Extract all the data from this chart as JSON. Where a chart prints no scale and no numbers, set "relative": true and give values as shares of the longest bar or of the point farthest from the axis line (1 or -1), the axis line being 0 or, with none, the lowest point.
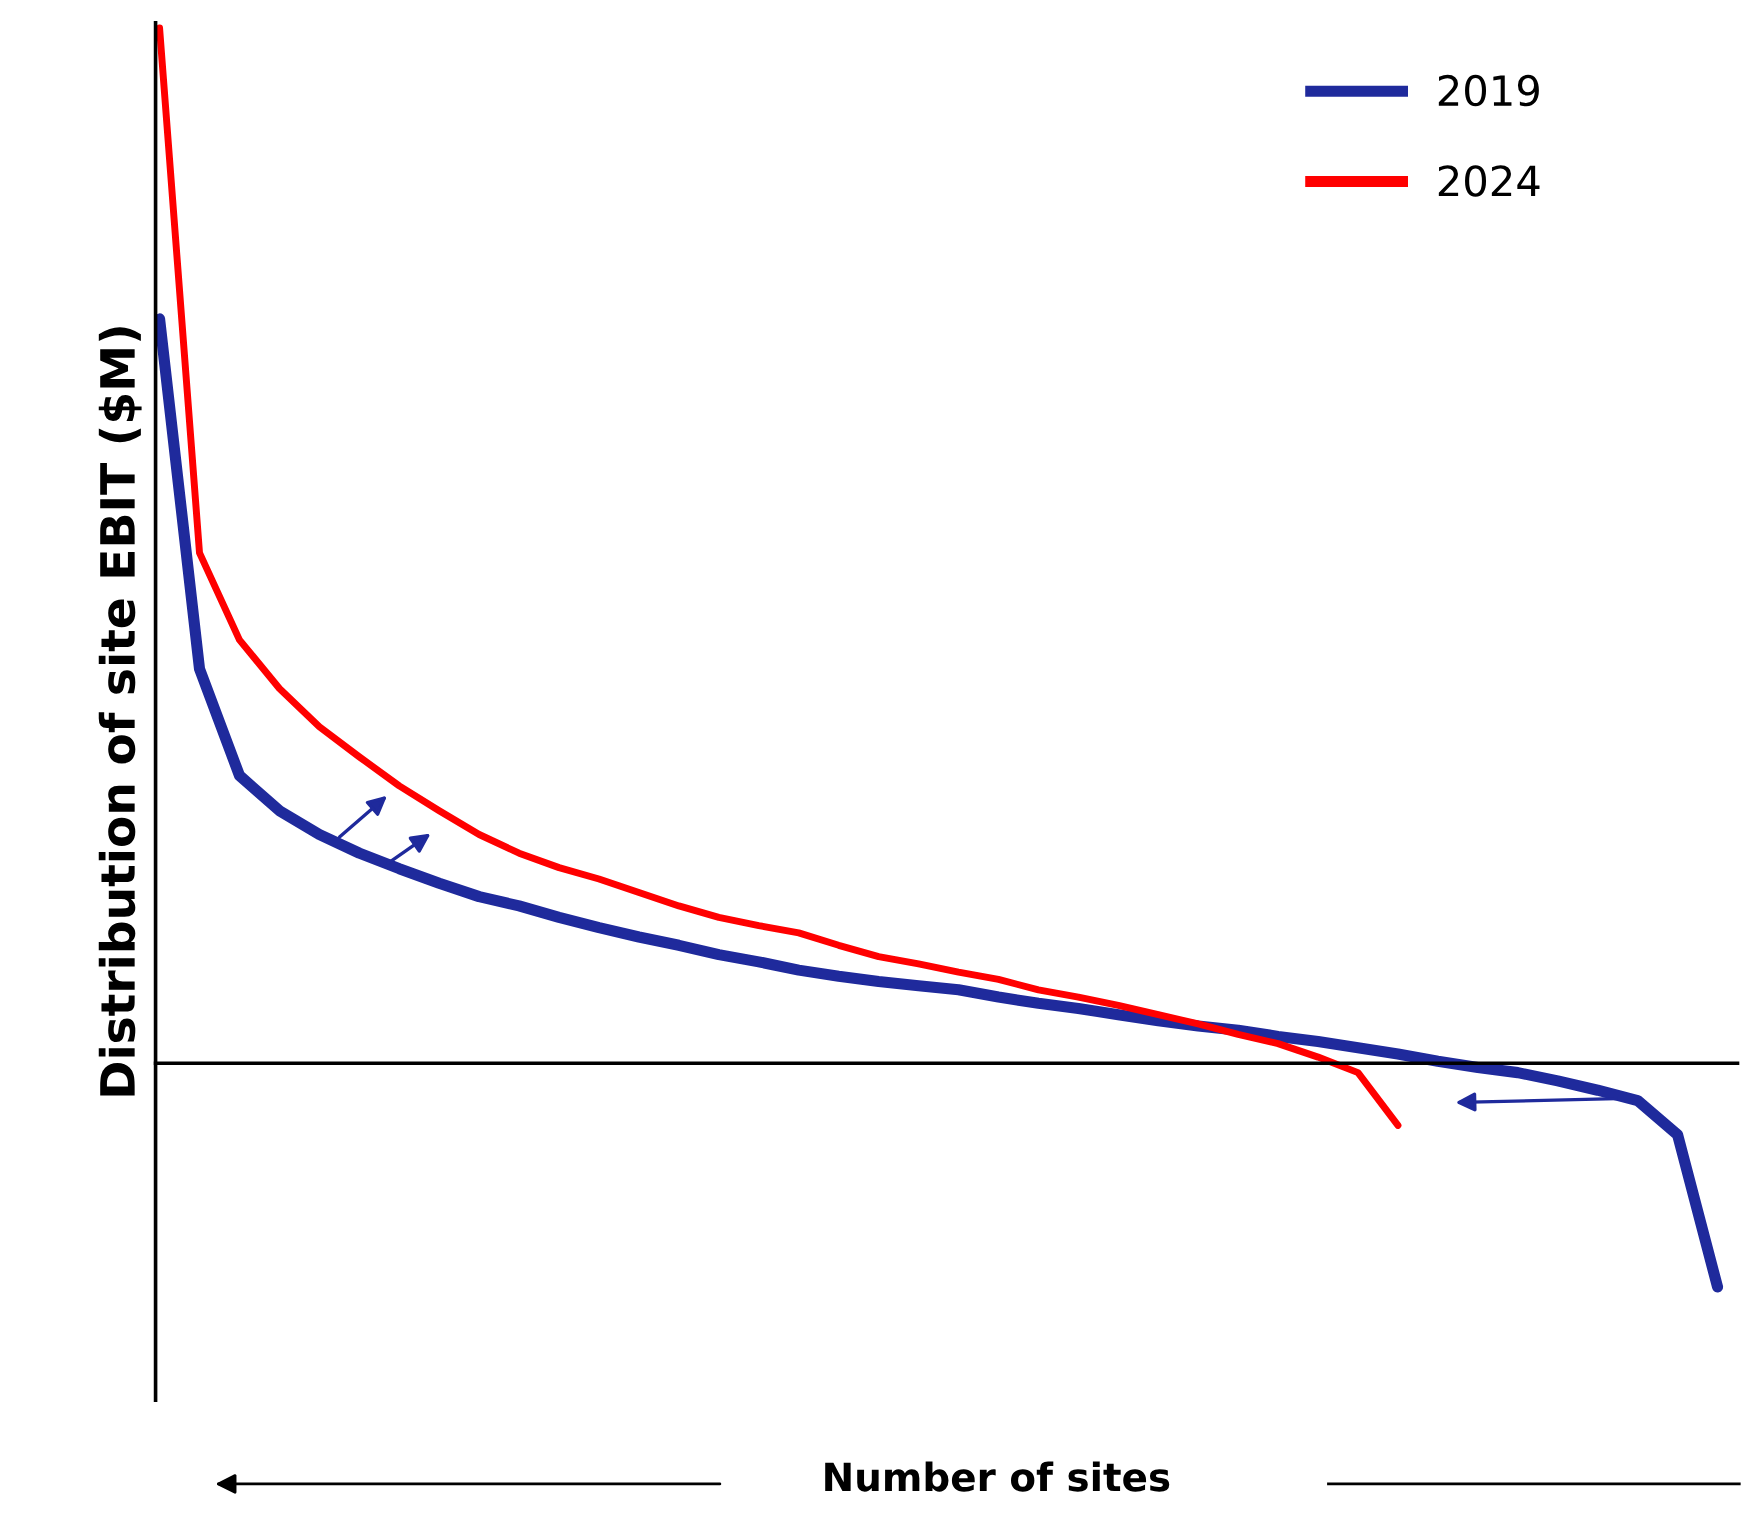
{
  "chart_data": {
    "type": "line",
    "relative": true,
    "ylabel": "Distribution of site EBIT ($M)",
    "xlabel": "Number of sites",
    "legend": "top right",
    "categories": [
      null,
      null,
      null,
      null,
      null,
      null,
      null,
      null,
      null,
      null,
      null,
      null,
      null,
      null,
      null,
      null,
      null,
      null,
      null,
      null,
      null,
      null,
      null,
      null,
      null,
      null,
      null,
      null,
      null,
      null,
      null,
      null,
      null,
      null,
      null,
      null,
      null,
      null,
      null,
      null
    ],
    "series": [
      {
        "name": "2019",
        "color": "#1f2a9c",
        "values": [
          0.719,
          0.381,
          0.278,
          0.244,
          0.221,
          0.203,
          0.188,
          0.174,
          0.161,
          0.152,
          0.141,
          0.131,
          0.122,
          0.114,
          0.105,
          0.098,
          0.09,
          0.084,
          0.079,
          0.075,
          0.071,
          0.064,
          0.058,
          0.053,
          0.047,
          0.041,
          0.036,
          0.032,
          0.026,
          0.021,
          0.015,
          0.009,
          0.002,
          -0.004,
          -0.009,
          -0.017,
          -0.026,
          -0.036,
          -0.069,
          -0.216
        ]
      },
      {
        "name": "2024",
        "color": "#ff0000",
        "values": [
          1.0,
          0.493,
          0.409,
          0.362,
          0.325,
          0.296,
          0.268,
          0.244,
          0.221,
          0.203,
          0.189,
          0.178,
          0.165,
          0.152,
          0.141,
          0.133,
          0.126,
          0.114,
          0.103,
          0.096,
          0.088,
          0.081,
          0.071,
          0.064,
          0.056,
          0.047,
          0.038,
          0.028,
          0.019,
          0.006,
          -0.009,
          -0.06,
          null,
          null,
          null,
          null,
          null,
          null,
          null,
          null
        ]
      }
    ]
  }
}
